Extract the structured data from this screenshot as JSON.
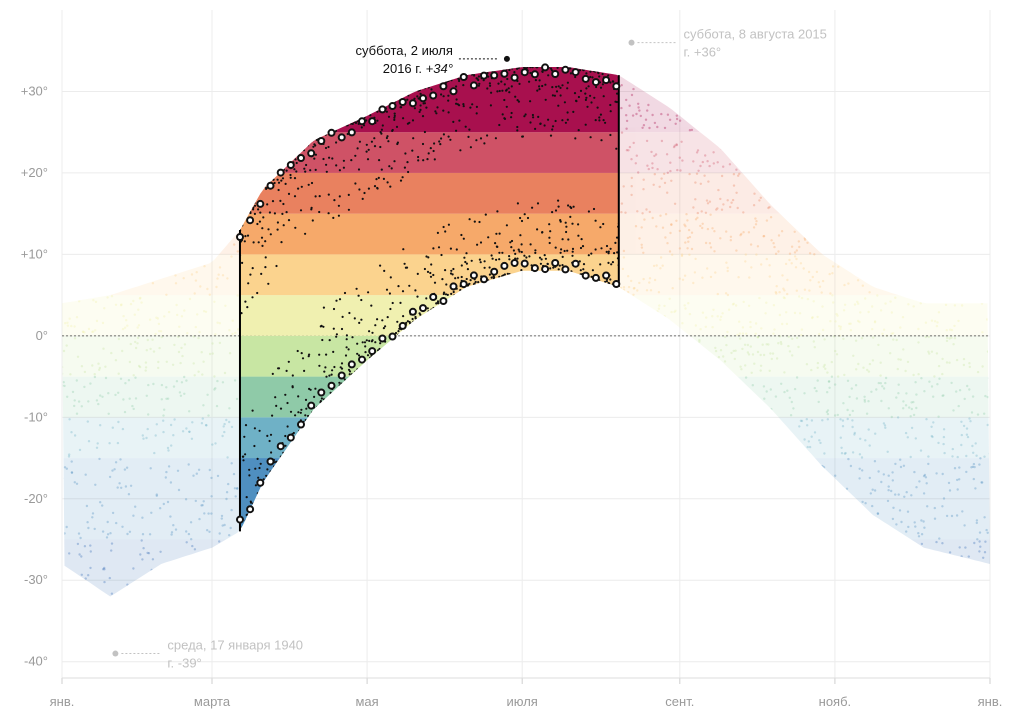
{
  "chart_data": {
    "type": "scatter",
    "title": "",
    "xlabel": "",
    "ylabel": "",
    "x_unit": "day_of_year",
    "xlim": [
      1,
      366
    ],
    "ylim": [
      -42,
      40
    ],
    "grid": true,
    "x_ticks": [
      {
        "day": 1,
        "label": "янв."
      },
      {
        "day": 60,
        "label": "марта"
      },
      {
        "day": 121,
        "label": "мая"
      },
      {
        "day": 182,
        "label": "июля"
      },
      {
        "day": 244,
        "label": "сент."
      },
      {
        "day": 305,
        "label": "нояб."
      },
      {
        "day": 366,
        "label": "янв."
      }
    ],
    "y_ticks": [
      {
        "value": 30,
        "label": "+30°"
      },
      {
        "value": 20,
        "label": "+20°"
      },
      {
        "value": 10,
        "label": "+10°"
      },
      {
        "value": 0,
        "label": "0°"
      },
      {
        "value": -10,
        "label": "-10°"
      },
      {
        "value": -20,
        "label": "-20°"
      },
      {
        "value": -30,
        "label": "-30°"
      },
      {
        "value": -40,
        "label": "-40°"
      }
    ],
    "color_bands": [
      {
        "from": -40,
        "to": -25,
        "color": "#3b6fb6"
      },
      {
        "from": -25,
        "to": -15,
        "color": "#4f8fc0"
      },
      {
        "from": -15,
        "to": -10,
        "color": "#6fb1c6"
      },
      {
        "from": -10,
        "to": -5,
        "color": "#8fcaa8"
      },
      {
        "from": -5,
        "to": 0,
        "color": "#c8e6a3"
      },
      {
        "from": 0,
        "to": 5,
        "color": "#f0f0b0"
      },
      {
        "from": 5,
        "to": 10,
        "color": "#fbd38e"
      },
      {
        "from": 10,
        "to": 15,
        "color": "#f6a96a"
      },
      {
        "from": 15,
        "to": 20,
        "color": "#e9815f"
      },
      {
        "from": 20,
        "to": 25,
        "color": "#cf5266"
      },
      {
        "from": 25,
        "to": 40,
        "color": "#a8104e"
      }
    ],
    "highlight_range": {
      "start_day": 71,
      "end_day": 220
    },
    "envelope": {
      "days": [
        1,
        20,
        40,
        60,
        71,
        80,
        100,
        121,
        140,
        160,
        182,
        200,
        220,
        240,
        260,
        280,
        300,
        320,
        340,
        366
      ],
      "max": [
        4,
        5,
        7,
        9,
        13,
        18,
        24,
        27,
        30,
        32,
        33,
        33,
        32,
        28,
        23,
        16,
        10,
        6,
        4,
        4
      ],
      "min": [
        -28,
        -32,
        -28,
        -26,
        -24,
        -18,
        -9,
        -3,
        2,
        6,
        8,
        8,
        6,
        2,
        -3,
        -9,
        -16,
        -22,
        -26,
        -28
      ]
    },
    "dot_color": "#111111",
    "annotations": [
      {
        "day": 176,
        "value": 34,
        "line1": "суббота, 2 июля",
        "line2_prefix": "2016 г. ",
        "line2_value": "+34°",
        "style": "dark"
      },
      {
        "day": 225,
        "value": 36,
        "line1": "суббота, 8 августа 2015",
        "line2": "г. +36°",
        "style": "faint"
      },
      {
        "day": 22,
        "value": -39,
        "line1": "среда, 17 января 1940",
        "line2": "г. -39°",
        "style": "faint"
      }
    ]
  }
}
